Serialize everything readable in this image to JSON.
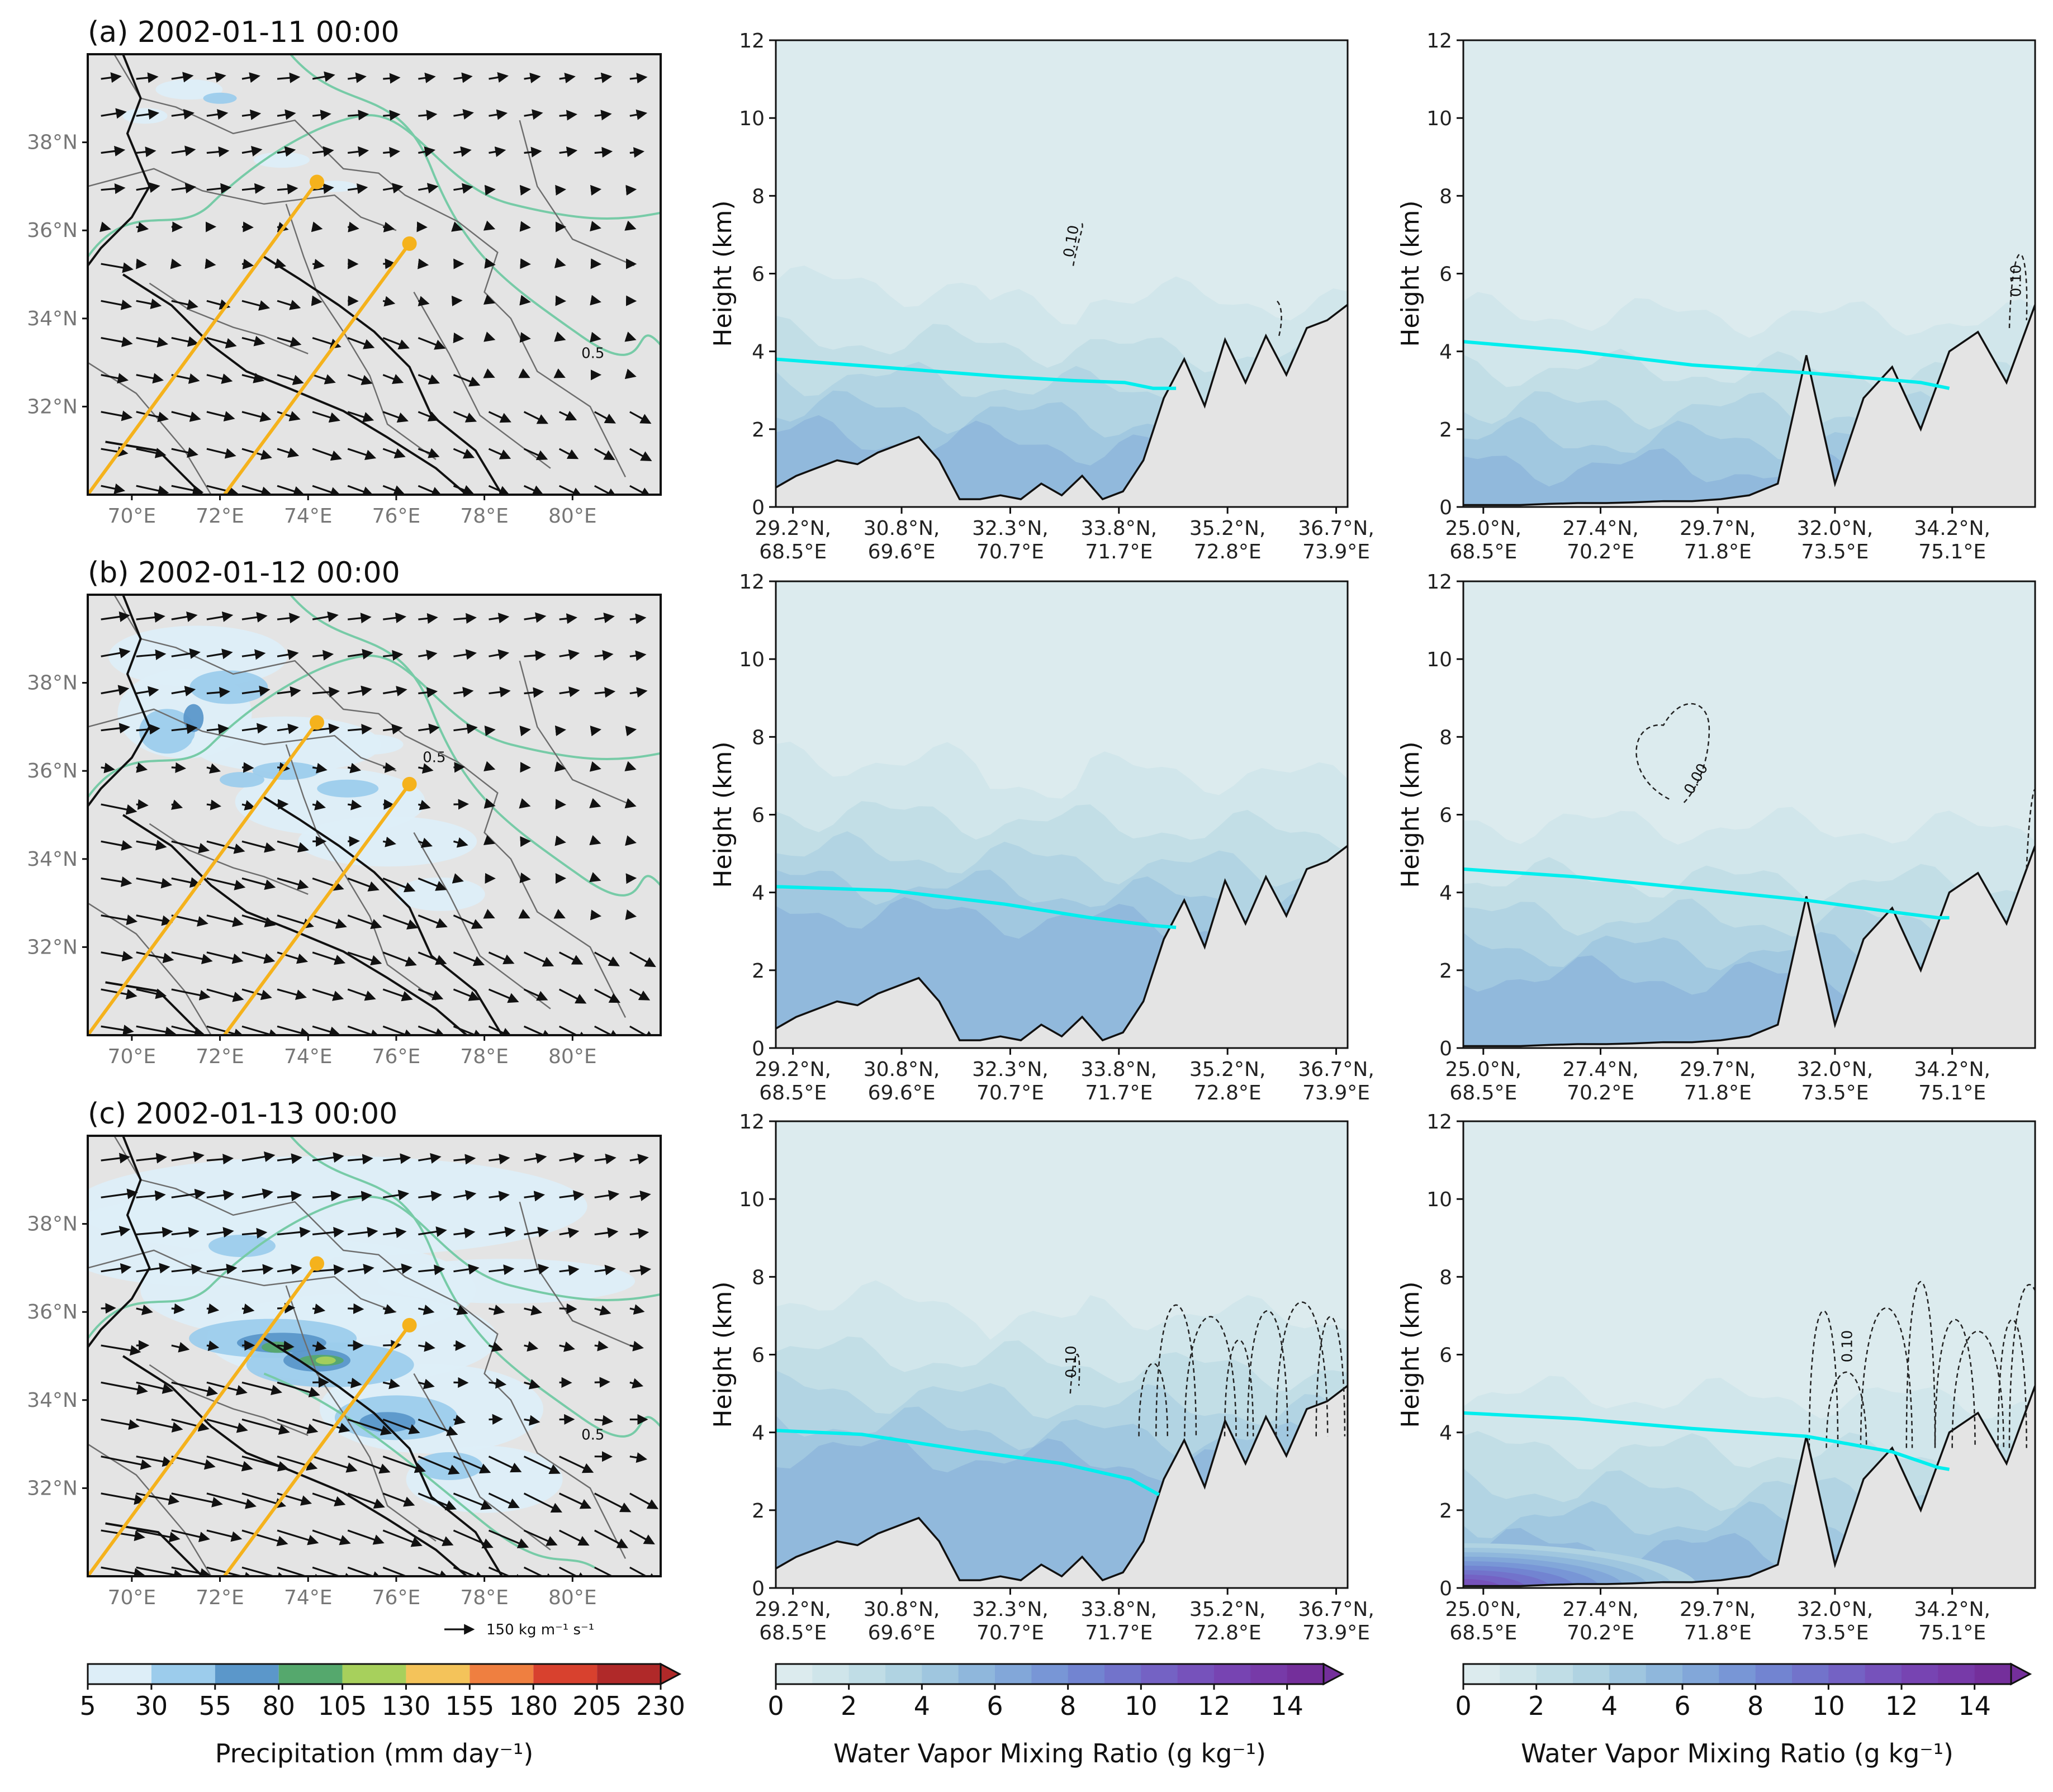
{
  "chart_data": [
    {
      "type": "map",
      "panel": "a",
      "title": "(a) 2002-01-11 00:00",
      "x_ticks": [
        "70°E",
        "72°E",
        "74°E",
        "76°E",
        "78°E",
        "80°E"
      ],
      "y_ticks": [
        "32°N",
        "34°N",
        "36°N",
        "38°N"
      ],
      "lon_range": [
        69,
        82
      ],
      "lat_range": [
        30,
        40
      ],
      "contour_label": "0.5",
      "section_endpoints": [
        [
          74.2,
          37.1
        ],
        [
          76.3,
          35.7
        ]
      ],
      "precip_level": "light"
    },
    {
      "type": "map",
      "panel": "b",
      "title": "(b) 2002-01-12 00:00",
      "x_ticks": [
        "70°E",
        "72°E",
        "74°E",
        "76°E",
        "78°E",
        "80°E"
      ],
      "y_ticks": [
        "32°N",
        "34°N",
        "36°N",
        "38°N"
      ],
      "lon_range": [
        69,
        82
      ],
      "lat_range": [
        30,
        40
      ],
      "contour_label": "0.5",
      "section_endpoints": [
        [
          74.2,
          37.1
        ],
        [
          76.3,
          35.7
        ]
      ],
      "precip_level": "moderate"
    },
    {
      "type": "map",
      "panel": "c",
      "title": "(c) 2002-01-13 00:00",
      "x_ticks": [
        "70°E",
        "72°E",
        "74°E",
        "76°E",
        "78°E",
        "80°E"
      ],
      "y_ticks": [
        "32°N",
        "34°N",
        "36°N",
        "38°N"
      ],
      "lon_range": [
        69,
        82
      ],
      "lat_range": [
        30,
        40
      ],
      "contour_label": "0.5",
      "section_endpoints": [
        [
          74.2,
          37.1
        ],
        [
          76.3,
          35.7
        ]
      ],
      "precip_level": "heavy",
      "vector_key": "150 kg m⁻¹ s⁻¹"
    },
    {
      "type": "cross-section",
      "panel": "a-mid",
      "ylabel": "Height (km)",
      "ylim": [
        0,
        12
      ],
      "y_ticks": [
        0,
        2,
        4,
        6,
        8,
        10,
        12
      ],
      "x_ticks": [
        "29.2°N,\n68.5°E",
        "30.8°N,\n69.6°E",
        "32.3°N,\n70.7°E",
        "33.8°N,\n71.7°E",
        "35.2°N,\n72.8°E",
        "36.7°N,\n73.9°E"
      ],
      "terrain": [
        0.5,
        0.8,
        1.0,
        1.2,
        1.1,
        1.4,
        1.6,
        1.8,
        1.2,
        0.2,
        0.2,
        0.3,
        0.2,
        0.6,
        0.3,
        0.8,
        0.2,
        0.4,
        1.2,
        2.8,
        3.8,
        2.6,
        4.3,
        3.2,
        4.4,
        3.4,
        4.6,
        4.8,
        5.2
      ],
      "freezing_line": [
        [
          0.0,
          3.8
        ],
        [
          0.18,
          3.6
        ],
        [
          0.4,
          3.35
        ],
        [
          0.52,
          3.25
        ],
        [
          0.61,
          3.2
        ],
        [
          0.66,
          3.05
        ],
        [
          0.7,
          3.05
        ]
      ],
      "contour_label": "0.10"
    },
    {
      "type": "cross-section",
      "panel": "a-right",
      "ylabel": "Height (km)",
      "ylim": [
        0,
        12
      ],
      "y_ticks": [
        0,
        2,
        4,
        6,
        8,
        10,
        12
      ],
      "x_ticks": [
        "25.0°N,\n68.5°E",
        "27.4°N,\n70.2°E",
        "29.7°N,\n71.8°E",
        "32.0°N,\n73.5°E",
        "34.2°N,\n75.1°E"
      ],
      "terrain": [
        0.05,
        0.05,
        0.05,
        0.08,
        0.1,
        0.1,
        0.12,
        0.15,
        0.15,
        0.2,
        0.3,
        0.6,
        3.9,
        0.6,
        2.8,
        3.6,
        2.0,
        4.0,
        4.5,
        3.2,
        5.2
      ],
      "freezing_line": [
        [
          0.0,
          4.25
        ],
        [
          0.2,
          4.0
        ],
        [
          0.4,
          3.65
        ],
        [
          0.6,
          3.45
        ],
        [
          0.8,
          3.2
        ],
        [
          0.85,
          3.05
        ]
      ],
      "contour_label": "0.10"
    },
    {
      "type": "cross-section",
      "panel": "b-mid",
      "ylabel": "Height (km)",
      "ylim": [
        0,
        12
      ],
      "y_ticks": [
        0,
        2,
        4,
        6,
        8,
        10,
        12
      ],
      "x_ticks": [
        "29.2°N,\n68.5°E",
        "30.8°N,\n69.6°E",
        "32.3°N,\n70.7°E",
        "33.8°N,\n71.7°E",
        "35.2°N,\n72.8°E",
        "36.7°N,\n73.9°E"
      ],
      "terrain": [
        0.5,
        0.8,
        1.0,
        1.2,
        1.1,
        1.4,
        1.6,
        1.8,
        1.2,
        0.2,
        0.2,
        0.3,
        0.2,
        0.6,
        0.3,
        0.8,
        0.2,
        0.4,
        1.2,
        2.8,
        3.8,
        2.6,
        4.3,
        3.2,
        4.4,
        3.4,
        4.6,
        4.8,
        5.2
      ],
      "freezing_line": [
        [
          0.0,
          4.15
        ],
        [
          0.2,
          4.05
        ],
        [
          0.4,
          3.7
        ],
        [
          0.55,
          3.35
        ],
        [
          0.66,
          3.15
        ],
        [
          0.7,
          3.1
        ]
      ]
    },
    {
      "type": "cross-section",
      "panel": "b-right",
      "ylabel": "Height (km)",
      "ylim": [
        0,
        12
      ],
      "y_ticks": [
        0,
        2,
        4,
        6,
        8,
        10,
        12
      ],
      "x_ticks": [
        "25.0°N,\n68.5°E",
        "27.4°N,\n70.2°E",
        "29.7°N,\n71.8°E",
        "32.0°N,\n73.5°E",
        "34.2°N,\n75.1°E"
      ],
      "terrain": [
        0.05,
        0.05,
        0.05,
        0.08,
        0.1,
        0.1,
        0.12,
        0.15,
        0.15,
        0.2,
        0.3,
        0.6,
        3.9,
        0.6,
        2.8,
        3.6,
        2.0,
        4.0,
        4.5,
        3.2,
        5.2
      ],
      "freezing_line": [
        [
          0.0,
          4.6
        ],
        [
          0.2,
          4.4
        ],
        [
          0.4,
          4.1
        ],
        [
          0.6,
          3.8
        ],
        [
          0.75,
          3.5
        ],
        [
          0.83,
          3.35
        ],
        [
          0.85,
          3.35
        ]
      ],
      "contour_label": "0.00"
    },
    {
      "type": "cross-section",
      "panel": "c-mid",
      "ylabel": "Height (km)",
      "ylim": [
        0,
        12
      ],
      "y_ticks": [
        0,
        2,
        4,
        6,
        8,
        10,
        12
      ],
      "x_ticks": [
        "29.2°N,\n68.5°E",
        "30.8°N,\n69.6°E",
        "32.3°N,\n70.7°E",
        "33.8°N,\n71.7°E",
        "35.2°N,\n72.8°E",
        "36.7°N,\n73.9°E"
      ],
      "terrain": [
        0.5,
        0.8,
        1.0,
        1.2,
        1.1,
        1.4,
        1.6,
        1.8,
        1.2,
        0.2,
        0.2,
        0.3,
        0.2,
        0.6,
        0.3,
        0.8,
        0.2,
        0.4,
        1.2,
        2.8,
        3.8,
        2.6,
        4.3,
        3.2,
        4.4,
        3.4,
        4.6,
        4.8,
        5.2
      ],
      "freezing_line": [
        [
          0.0,
          4.05
        ],
        [
          0.15,
          3.95
        ],
        [
          0.35,
          3.5
        ],
        [
          0.5,
          3.2
        ],
        [
          0.62,
          2.8
        ],
        [
          0.67,
          2.4
        ]
      ],
      "contour_label": "0.10"
    },
    {
      "type": "cross-section",
      "panel": "c-right",
      "ylabel": "Height (km)",
      "ylim": [
        0,
        12
      ],
      "y_ticks": [
        0,
        2,
        4,
        6,
        8,
        10,
        12
      ],
      "x_ticks": [
        "25.0°N,\n68.5°E",
        "27.4°N,\n70.2°E",
        "29.7°N,\n71.8°E",
        "32.0°N,\n73.5°E",
        "34.2°N,\n75.1°E"
      ],
      "terrain": [
        0.05,
        0.05,
        0.05,
        0.08,
        0.1,
        0.1,
        0.12,
        0.15,
        0.15,
        0.2,
        0.3,
        0.6,
        3.9,
        0.6,
        2.8,
        3.6,
        2.0,
        4.0,
        4.5,
        3.2,
        5.2
      ],
      "freezing_line": [
        [
          0.0,
          4.5
        ],
        [
          0.2,
          4.35
        ],
        [
          0.4,
          4.1
        ],
        [
          0.6,
          3.9
        ],
        [
          0.75,
          3.5
        ],
        [
          0.83,
          3.1
        ],
        [
          0.85,
          3.05
        ]
      ],
      "contour_label": "0.10"
    },
    {
      "type": "colorbar",
      "label": "Precipitation (mm day⁻¹)",
      "ticks": [
        "5",
        "30",
        "55",
        "80",
        "105",
        "130",
        "155",
        "180",
        "205",
        "230"
      ],
      "colors": [
        "#ddeef8",
        "#9cccec",
        "#5b97ca",
        "#55a86d",
        "#a7d05c",
        "#f4c35a",
        "#ef7f40",
        "#d8412e",
        "#b02929"
      ]
    },
    {
      "type": "colorbar",
      "label": "Water Vapor Mixing Ratio (g kg⁻¹)",
      "ticks": [
        "0",
        "2",
        "4",
        "6",
        "8",
        "10",
        "12",
        "14"
      ],
      "range": [
        0,
        15
      ]
    },
    {
      "type": "colorbar",
      "label": "Water Vapor Mixing Ratio (g kg⁻¹)",
      "ticks": [
        "0",
        "2",
        "4",
        "6",
        "8",
        "10",
        "12",
        "14"
      ],
      "range": [
        0,
        15
      ]
    }
  ],
  "style": {
    "land_gray": "#e4e4e4",
    "section_line": "#f5b21c",
    "contour_green": "#77cba7",
    "freezing_cyan": "#00eeee",
    "terrain_fill": "#e4e4e4"
  }
}
